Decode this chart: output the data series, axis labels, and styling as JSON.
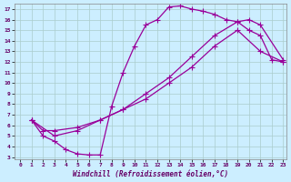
{
  "xlabel": "Windchill (Refroidissement éolien,°C)",
  "bg_color": "#cceeff",
  "grid_color": "#aacccc",
  "line_color": "#990099",
  "xlim": [
    0,
    23
  ],
  "ylim": [
    3,
    17
  ],
  "xticks": [
    0,
    1,
    2,
    3,
    4,
    5,
    6,
    7,
    8,
    9,
    10,
    11,
    12,
    13,
    14,
    15,
    16,
    17,
    18,
    19,
    20,
    21,
    22,
    23
  ],
  "yticks": [
    3,
    4,
    5,
    6,
    7,
    8,
    9,
    10,
    11,
    12,
    13,
    14,
    15,
    16,
    17
  ],
  "line1_x": [
    1,
    2,
    3,
    4,
    5,
    6,
    7,
    8,
    9,
    10,
    11,
    12,
    13,
    14,
    15,
    16,
    17,
    18,
    19,
    20,
    21,
    22,
    23
  ],
  "line1_y": [
    6.5,
    5.0,
    4.5,
    3.7,
    3.3,
    3.2,
    3.2,
    7.8,
    11.0,
    13.5,
    15.5,
    16.0,
    17.2,
    17.3,
    17.0,
    16.8,
    16.5,
    16.0,
    15.8,
    15.0,
    14.5,
    12.2,
    12.0
  ],
  "line2_x": [
    1,
    2,
    3,
    5,
    7,
    9,
    11,
    13,
    15,
    17,
    19,
    20,
    21,
    23
  ],
  "line2_y": [
    6.5,
    5.5,
    5.5,
    5.8,
    6.5,
    7.5,
    9.0,
    10.5,
    12.5,
    14.5,
    15.8,
    16.0,
    15.5,
    12.2
  ],
  "line3_x": [
    1,
    3,
    5,
    7,
    9,
    11,
    13,
    15,
    17,
    19,
    21,
    23
  ],
  "line3_y": [
    6.5,
    5.0,
    5.5,
    6.5,
    7.5,
    8.5,
    10.0,
    11.5,
    13.5,
    15.0,
    13.0,
    12.0
  ],
  "marker_size": 4,
  "linewidth": 0.9
}
